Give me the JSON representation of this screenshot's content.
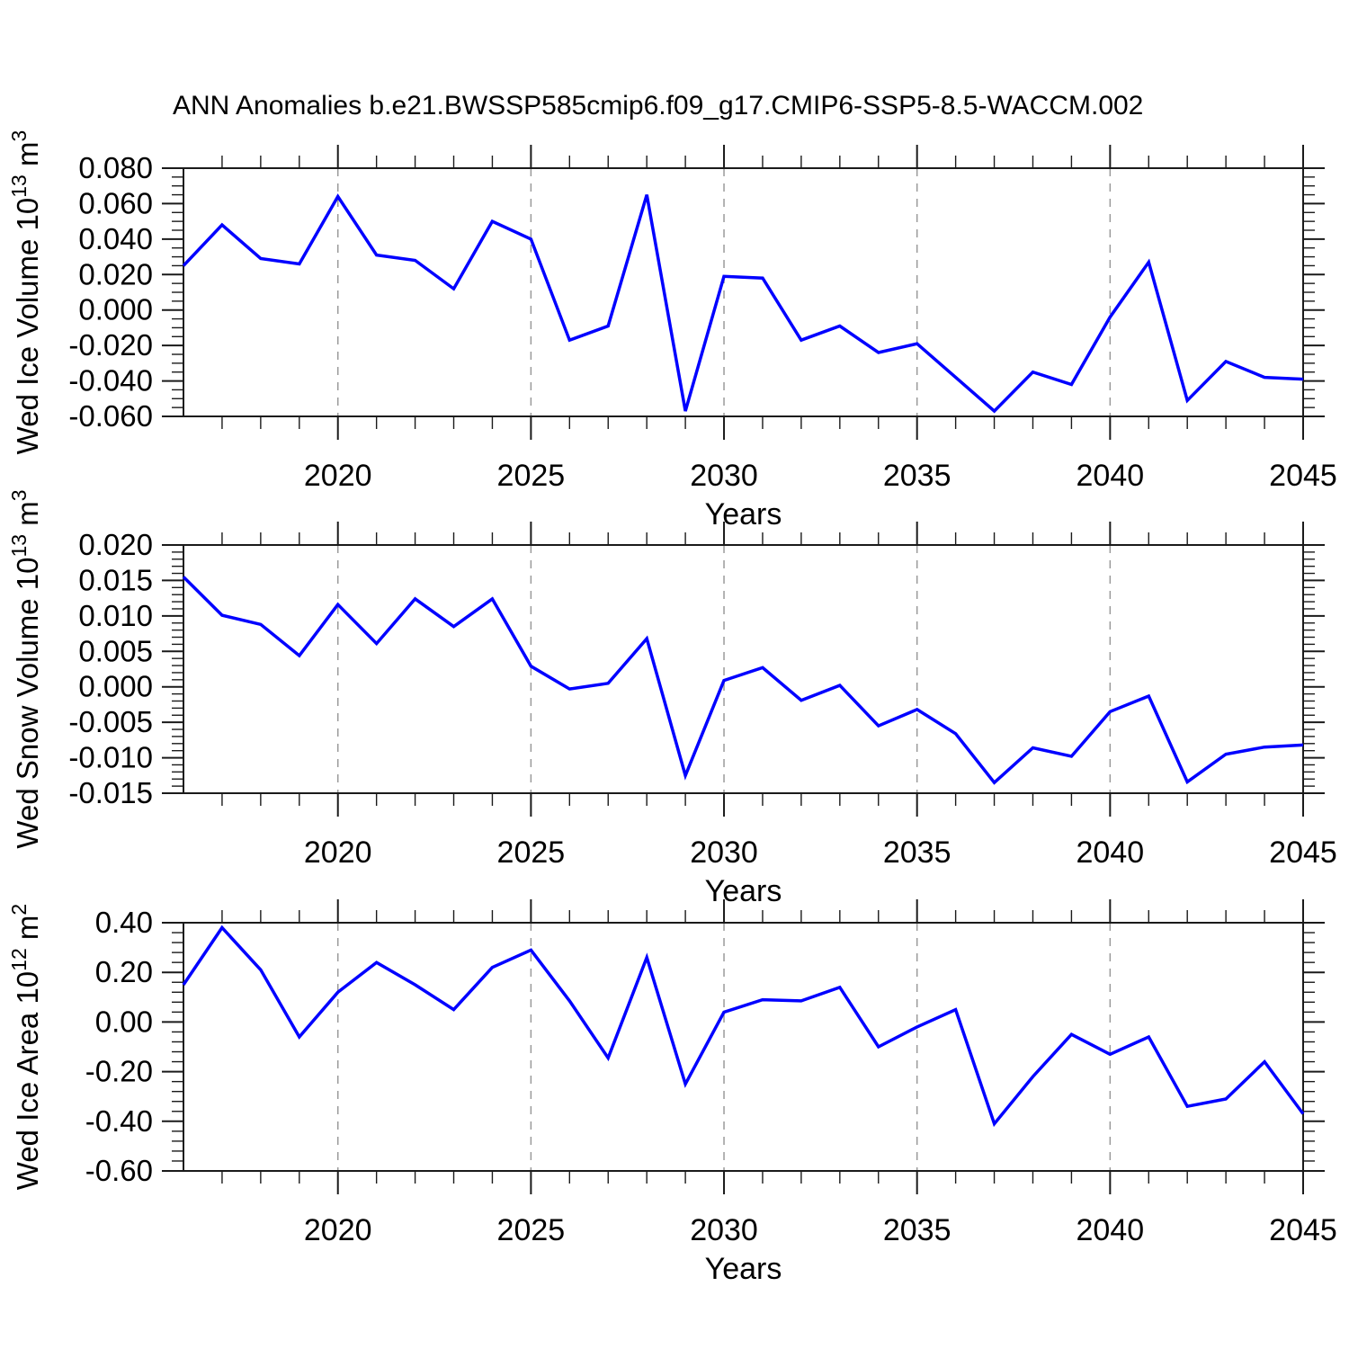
{
  "title": "ANN Anomalies b.e21.BWSSP585cmip6.f09_g17.CMIP6-SSP5-8.5-WACCM.002",
  "colors": {
    "line": "#0000ff",
    "grid": "#9a9a9a",
    "axis": "#1a1a1a",
    "text": "#000000"
  },
  "chart_data": [
    {
      "type": "line",
      "ylabel": "Wed Ice Volume 10^13 m^3",
      "ylabel_rich": [
        {
          "t": "Wed Ice Volume 10"
        },
        {
          "sup": "13"
        },
        {
          "t": " m"
        },
        {
          "sup": "3"
        }
      ],
      "xlabel": "Years",
      "xlim": [
        2016,
        2045
      ],
      "ylim": [
        -0.06,
        0.08
      ],
      "x": [
        2016,
        2017,
        2018,
        2019,
        2020,
        2021,
        2022,
        2023,
        2024,
        2025,
        2026,
        2027,
        2028,
        2029,
        2030,
        2031,
        2032,
        2033,
        2034,
        2035,
        2036,
        2037,
        2038,
        2039,
        2040,
        2041,
        2042,
        2043,
        2044,
        2045
      ],
      "values": [
        0.025,
        0.048,
        0.029,
        0.026,
        0.064,
        0.031,
        0.028,
        0.012,
        0.05,
        0.04,
        -0.017,
        -0.009,
        0.065,
        -0.057,
        0.019,
        0.018,
        -0.017,
        -0.009,
        -0.024,
        -0.019,
        -0.038,
        -0.057,
        -0.035,
        -0.042,
        -0.004,
        0.027,
        -0.051,
        -0.029,
        -0.038,
        -0.039
      ],
      "yticks_major": [
        0.08,
        0.06,
        0.04,
        0.02,
        0.0,
        -0.02,
        -0.04,
        -0.06
      ],
      "ytick_labels": [
        "0.080",
        "0.060",
        "0.040",
        "0.020",
        "0.000",
        "-0.020",
        "-0.040",
        "-0.060"
      ],
      "ytick_minor_step": 0.005,
      "ytick_major_step": 0.02,
      "xticks_major": [
        2020,
        2025,
        2030,
        2035,
        2040,
        2045
      ],
      "xtick_labels": [
        "2020",
        "2025",
        "2030",
        "2035",
        "2040",
        "2045"
      ],
      "grid_years": [
        2020,
        2025,
        2030,
        2035,
        2040
      ]
    },
    {
      "type": "line",
      "ylabel": "Wed Snow Volume 10^13 m^3",
      "ylabel_rich": [
        {
          "t": "Wed Snow Volume 10"
        },
        {
          "sup": "13"
        },
        {
          "t": " m"
        },
        {
          "sup": "3"
        }
      ],
      "xlabel": "Years",
      "xlim": [
        2016,
        2045
      ],
      "ylim": [
        -0.015,
        0.02
      ],
      "x": [
        2016,
        2017,
        2018,
        2019,
        2020,
        2021,
        2022,
        2023,
        2024,
        2025,
        2026,
        2027,
        2028,
        2029,
        2030,
        2031,
        2032,
        2033,
        2034,
        2035,
        2036,
        2037,
        2038,
        2039,
        2040,
        2041,
        2042,
        2043,
        2044,
        2045
      ],
      "values": [
        0.0155,
        0.0101,
        0.0088,
        0.0044,
        0.0116,
        0.0061,
        0.0124,
        0.0085,
        0.0124,
        0.0029,
        -0.0003,
        0.0005,
        0.0068,
        -0.0125,
        0.0009,
        0.0027,
        -0.0019,
        0.0002,
        -0.0055,
        -0.0032,
        -0.0066,
        -0.0135,
        -0.0086,
        -0.0098,
        -0.0035,
        -0.0013,
        -0.0134,
        -0.0095,
        -0.0085,
        -0.0082
      ],
      "yticks_major": [
        0.02,
        0.015,
        0.01,
        0.005,
        0.0,
        -0.005,
        -0.01,
        -0.015
      ],
      "ytick_labels": [
        "0.020",
        "0.015",
        "0.010",
        "0.005",
        "0.000",
        "-0.005",
        "-0.010",
        "-0.015"
      ],
      "ytick_minor_step": 0.001,
      "ytick_major_step": 0.005,
      "xticks_major": [
        2020,
        2025,
        2030,
        2035,
        2040,
        2045
      ],
      "xtick_labels": [
        "2020",
        "2025",
        "2030",
        "2035",
        "2040",
        "2045"
      ],
      "grid_years": [
        2020,
        2025,
        2030,
        2035,
        2040
      ]
    },
    {
      "type": "line",
      "ylabel": "Wed Ice Area 10^12 m^2",
      "ylabel_rich": [
        {
          "t": "Wed Ice Area 10"
        },
        {
          "sup": "12"
        },
        {
          "t": " m"
        },
        {
          "sup": "2"
        }
      ],
      "xlabel": "Years",
      "xlim": [
        2016,
        2045
      ],
      "ylim": [
        -0.6,
        0.4
      ],
      "x": [
        2016,
        2017,
        2018,
        2019,
        2020,
        2021,
        2022,
        2023,
        2024,
        2025,
        2026,
        2027,
        2028,
        2029,
        2030,
        2031,
        2032,
        2033,
        2034,
        2035,
        2036,
        2037,
        2038,
        2039,
        2040,
        2041,
        2042,
        2043,
        2044,
        2045
      ],
      "values": [
        0.15,
        0.38,
        0.21,
        -0.06,
        0.12,
        0.24,
        0.15,
        0.05,
        0.22,
        0.29,
        0.085,
        -0.145,
        0.26,
        -0.25,
        0.04,
        0.09,
        0.085,
        0.14,
        -0.1,
        -0.02,
        0.05,
        -0.41,
        -0.22,
        -0.05,
        -0.13,
        -0.06,
        -0.34,
        -0.31,
        -0.16,
        -0.37
      ],
      "yticks_major": [
        0.4,
        0.2,
        0.0,
        -0.2,
        -0.4,
        -0.6
      ],
      "ytick_labels": [
        "0.40",
        "0.20",
        "0.00",
        "-0.20",
        "-0.40",
        "-0.60"
      ],
      "ytick_minor_step": 0.04,
      "ytick_major_step": 0.2,
      "xticks_major": [
        2020,
        2025,
        2030,
        2035,
        2040,
        2045
      ],
      "xtick_labels": [
        "2020",
        "2025",
        "2030",
        "2035",
        "2040",
        "2045"
      ],
      "grid_years": [
        2020,
        2025,
        2030,
        2035,
        2040
      ]
    }
  ]
}
